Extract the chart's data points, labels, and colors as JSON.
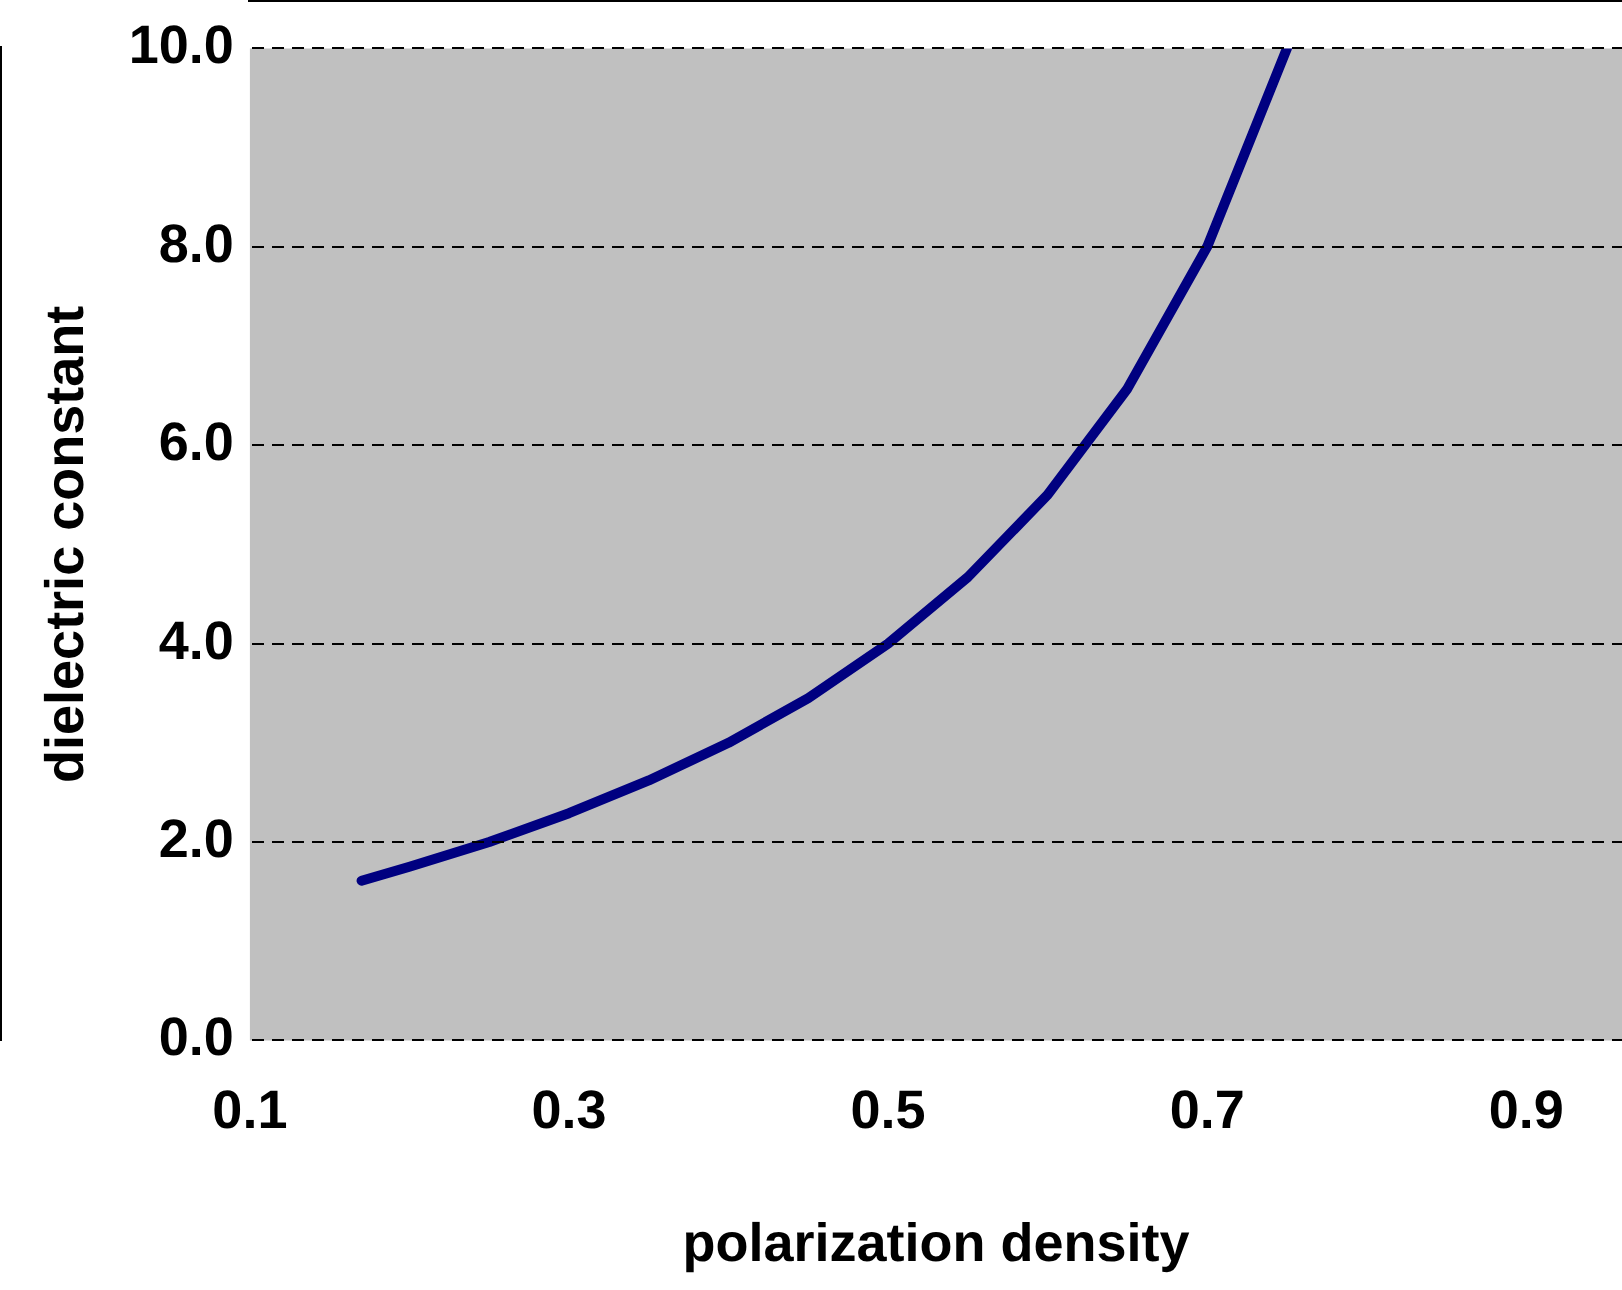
{
  "chart_data": {
    "type": "line",
    "xlabel": "polarization density",
    "ylabel": "dielectric constant",
    "x": [
      0.17,
      0.2,
      0.25,
      0.3,
      0.35,
      0.4,
      0.45,
      0.5,
      0.55,
      0.6,
      0.65,
      0.7,
      0.75
    ],
    "series": [
      {
        "color": "#000080",
        "values": [
          1.61,
          1.75,
          2.0,
          2.29,
          2.62,
          3.0,
          3.45,
          4.0,
          4.67,
          5.5,
          6.57,
          8.0,
          10.0
        ]
      }
    ],
    "xlim": [
      0.1,
      0.96
    ],
    "xticks": [
      {
        "value": 0.1,
        "label": "0.1"
      },
      {
        "value": 0.3,
        "label": "0.3"
      },
      {
        "value": 0.5,
        "label": "0.5"
      },
      {
        "value": 0.7,
        "label": "0.7"
      },
      {
        "value": 0.9,
        "label": "0.9"
      }
    ],
    "ylim": [
      0,
      10
    ],
    "yticks": [
      {
        "value": 0,
        "label": "0.0"
      },
      {
        "value": 2,
        "label": "2.0"
      },
      {
        "value": 4,
        "label": "4.0"
      },
      {
        "value": 6,
        "label": "6.0"
      },
      {
        "value": 8,
        "label": "8.0"
      },
      {
        "value": 10,
        "label": "10.0"
      }
    ],
    "grid": "y",
    "legend": false,
    "marker": "none",
    "line_style": "solid"
  }
}
